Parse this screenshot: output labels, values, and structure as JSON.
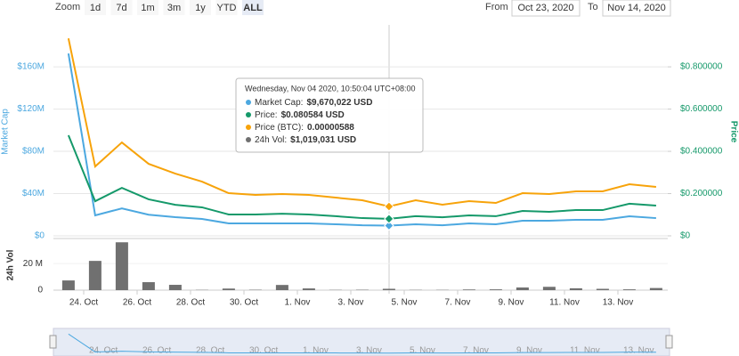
{
  "toolbar": {
    "zoom_label": "Zoom",
    "buttons": [
      "1d",
      "7d",
      "1m",
      "3m",
      "1y",
      "YTD",
      "ALL"
    ],
    "from_label": "From",
    "from_value": "Oct 23, 2020",
    "to_label": "To",
    "to_value": "Nov 14, 2020"
  },
  "tooltip": {
    "header": "Wednesday, Nov 04 2020, 10:50:04 UTC+08:00",
    "items": [
      {
        "label": "Market Cap:",
        "value": "$9,670,022 USD"
      },
      {
        "label": "Price:",
        "value": "$0.080584 USD"
      },
      {
        "label": "Price (BTC):",
        "value": "0.00000588"
      },
      {
        "label": "24h Vol:",
        "value": "$1,019,031 USD"
      }
    ]
  },
  "chart_data": {
    "type": "line",
    "y_label": "Market Cap",
    "y2_label": "Price",
    "vol_label": "24h Vol",
    "x": [
      23.43,
      24.43,
      25.43,
      26.43,
      27.43,
      28.43,
      29.43,
      30.43,
      31.43,
      32.43,
      33.43,
      34.43,
      35.43,
      36.43,
      37.43,
      38.43,
      39.43,
      40.43,
      41.43,
      42.43,
      43.43,
      44.43,
      45.43
    ],
    "xlim": [
      22.867,
      45.867
    ],
    "xticks": [
      {
        "value": 24,
        "label": "24. Oct"
      },
      {
        "value": 26,
        "label": "26. Oct"
      },
      {
        "value": 28,
        "label": "28. Oct"
      },
      {
        "value": 30,
        "label": "30. Oct"
      },
      {
        "value": 32,
        "label": "1. Nov"
      },
      {
        "value": 34,
        "label": "3. Nov"
      },
      {
        "value": 36,
        "label": "5. Nov"
      },
      {
        "value": 38,
        "label": "7. Nov"
      },
      {
        "value": 40,
        "label": "9. Nov"
      },
      {
        "value": 42,
        "label": "11. Nov"
      },
      {
        "value": 44,
        "label": "13. Nov"
      }
    ],
    "ylim": [
      0,
      198000000
    ],
    "yticks": [
      {
        "value": 0,
        "label": "$0"
      },
      {
        "value": 40000000,
        "label": "$40M"
      },
      {
        "value": 80000000,
        "label": "$80M"
      },
      {
        "value": 120000000,
        "label": "$120M"
      },
      {
        "value": 160000000,
        "label": "$160M"
      }
    ],
    "y2lim": [
      0,
      0.99
    ],
    "y2ticks": [
      {
        "value": 0,
        "label": "$0"
      },
      {
        "value": 0.2,
        "label": "$0.200000"
      },
      {
        "value": 0.4,
        "label": "$0.400000"
      },
      {
        "value": 0.6,
        "label": "$0.600000"
      },
      {
        "value": 0.8,
        "label": "$0.800000"
      }
    ],
    "y3lim": [
      0,
      4.19e-05
    ],
    "vol_lim": [
      0,
      37500000
    ],
    "vol_ticks": [
      0,
      {
        "value": 20000000,
        "label": "20 M"
      }
    ],
    "grid": true,
    "series": [
      {
        "color": "#4ca8e0",
        "axis": "y",
        "values": [
          172600000,
          19400000,
          26000000,
          20000000,
          17700000,
          16000000,
          11800000,
          11800000,
          11800000,
          11800000,
          11000000,
          10000000,
          9670022,
          11000000,
          10000000,
          11800000,
          11000000,
          14300000,
          14300000,
          15200000,
          15200000,
          18500000,
          16800000
        ]
      },
      {
        "color": "#15996a",
        "axis": "y2",
        "values": [
          0.476,
          0.164,
          0.227,
          0.173,
          0.147,
          0.135,
          0.101,
          0.101,
          0.105,
          0.101,
          0.093,
          0.084,
          0.080584,
          0.093,
          0.088,
          0.097,
          0.093,
          0.118,
          0.114,
          0.122,
          0.122,
          0.152,
          0.143
        ]
      },
      {
        "color": "#f7a30a",
        "axis": "y3",
        "values": [
          3.956e-05,
          1.39e-05,
          1.871e-05,
          1.443e-05,
          1.247e-05,
          1.087e-05,
          8.55e-06,
          8.2e-06,
          8.38e-06,
          8.2e-06,
          7.66e-06,
          7.13e-06,
          5.88e-06,
          7.13e-06,
          6.24e-06,
          6.95e-06,
          6.59e-06,
          8.55e-06,
          8.38e-06,
          8.91e-06,
          8.91e-06,
          1.034e-05,
          9.8e-06
        ]
      },
      {
        "type": "bar",
        "color": "#707070",
        "axis": "vol",
        "values": [
          7300000,
          22000000,
          36000000,
          6000000,
          4000000,
          200000,
          1200000,
          300000,
          3900000,
          1300000,
          200000,
          300000,
          1019031,
          200000,
          200000,
          500000,
          600000,
          2000000,
          2500000,
          1400000,
          1000000,
          600000,
          1600000
        ]
      }
    ]
  }
}
